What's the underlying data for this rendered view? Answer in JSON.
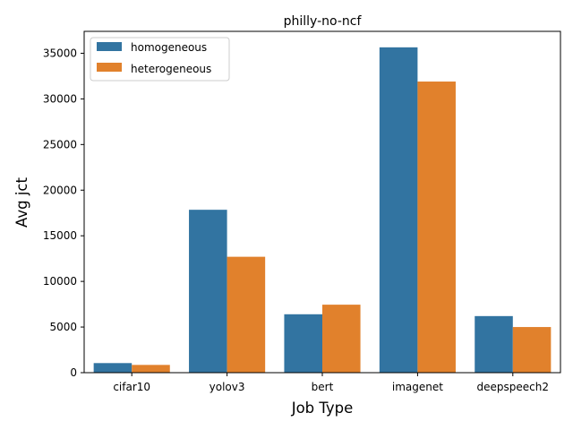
{
  "chart_data": {
    "type": "bar",
    "title": "philly-no-ncf",
    "xlabel": "Job Type",
    "ylabel": "Avg jct",
    "categories": [
      "cifar10",
      "yolov3",
      "bert",
      "imagenet",
      "deepspeech2"
    ],
    "series": [
      {
        "name": "homogeneous",
        "color": "#3274a1",
        "values": [
          1050,
          17850,
          6400,
          35650,
          6200
        ]
      },
      {
        "name": "heterogeneous",
        "color": "#e1812c",
        "values": [
          850,
          12700,
          7450,
          31900,
          5000
        ]
      }
    ],
    "ylim": [
      0,
      37400
    ],
    "yticks": [
      0,
      5000,
      10000,
      15000,
      20000,
      25000,
      30000,
      35000
    ],
    "legend_position": "top-left",
    "grid": false
  }
}
